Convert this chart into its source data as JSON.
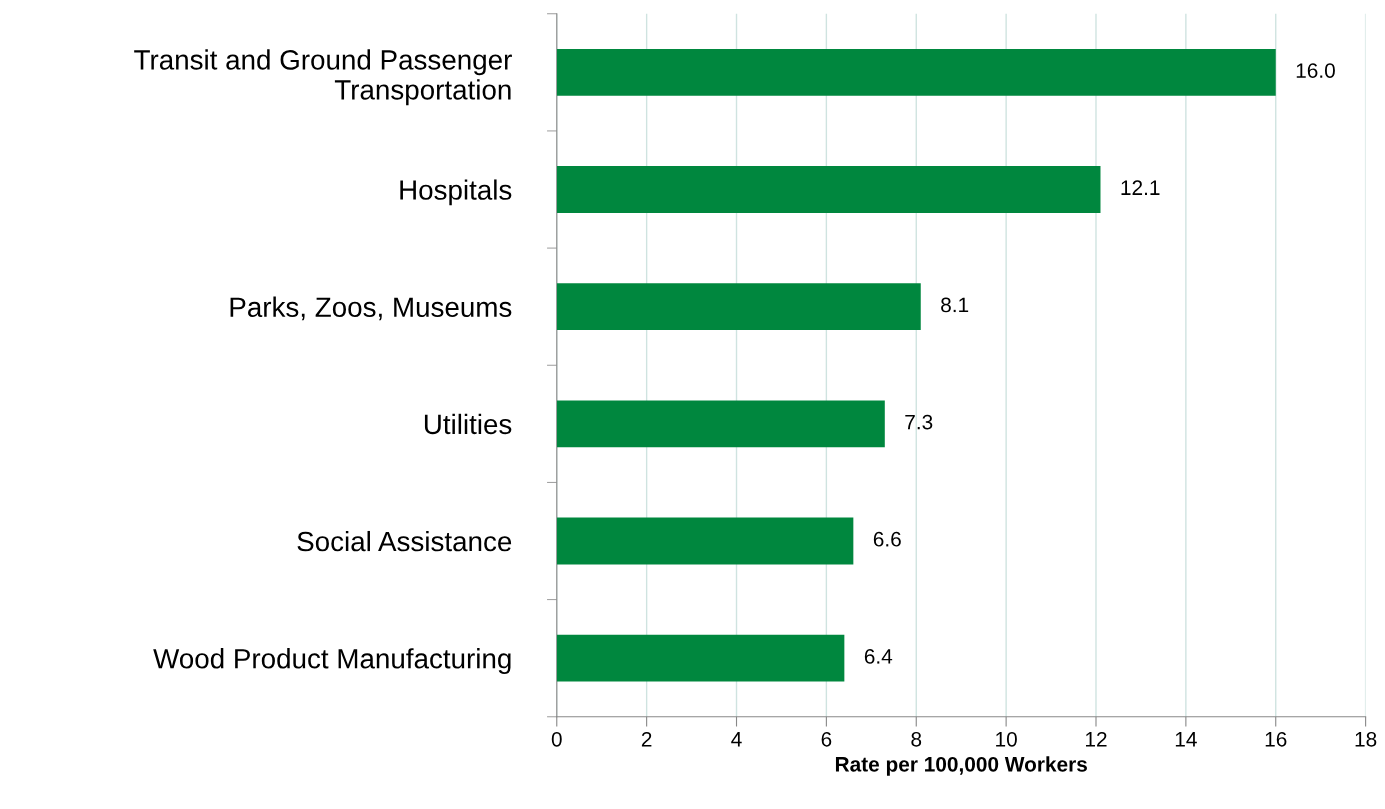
{
  "chart_data": {
    "type": "bar",
    "orientation": "horizontal",
    "categories": [
      "Transit and Ground Passenger\nTransportation",
      "Hospitals",
      "Parks, Zoos, Museums",
      "Utilities",
      "Social Assistance",
      "Wood Product Manufacturing"
    ],
    "values": [
      16.0,
      12.1,
      8.1,
      7.3,
      6.6,
      6.4
    ],
    "color": "#00873e",
    "xlabel": "Rate per 100,000 Workers",
    "xlim": [
      0,
      18
    ],
    "xticks": [
      0,
      2,
      4,
      6,
      8,
      10,
      12,
      14,
      16,
      18
    ],
    "value_labels": [
      "16.0",
      "12.1",
      "8.1",
      "7.3",
      "6.6",
      "6.4"
    ],
    "grid": "x"
  }
}
